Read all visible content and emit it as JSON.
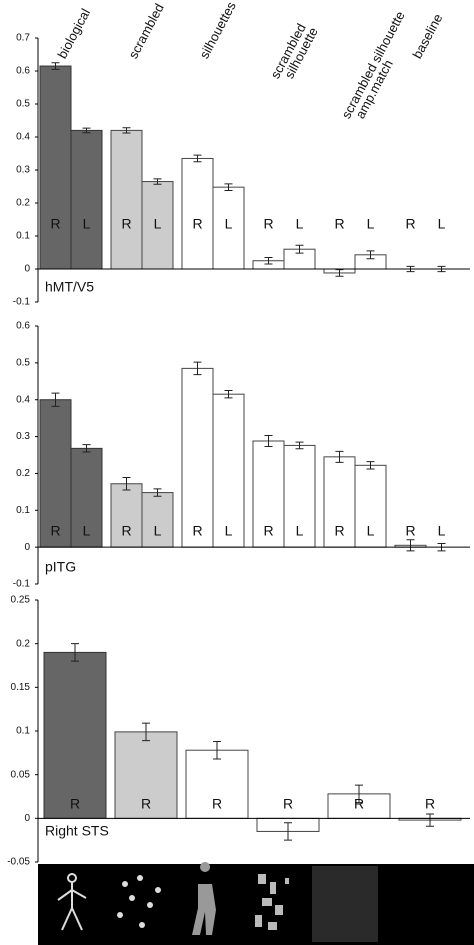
{
  "chart_data": [
    {
      "type": "bar",
      "label": "hMT/V5",
      "categories": [
        "biological",
        "scrambled",
        "silhouettes",
        [
          "scrambled",
          "silhouette"
        ],
        [
          "scrambled silhouette",
          "amp.match"
        ],
        "baseline"
      ],
      "colors": [
        "#666666",
        "#cccccc",
        "#ffffff",
        "#ffffff",
        "#ffffff",
        "#ffffff"
      ],
      "series": [
        {
          "name": "R",
          "values": [
            0.615,
            0.42,
            0.335,
            0.025,
            -0.012,
            0.0
          ],
          "errors": [
            0.01,
            0.008,
            0.01,
            0.01,
            0.01,
            0.008
          ]
        },
        {
          "name": "L",
          "values": [
            0.42,
            0.265,
            0.248,
            0.06,
            0.043,
            0.0
          ],
          "errors": [
            0.007,
            0.008,
            0.01,
            0.012,
            0.012,
            0.008
          ]
        }
      ],
      "ylim": [
        -0.1,
        0.7
      ],
      "yticks": [
        -0.1,
        0,
        0.1,
        0.2,
        0.3,
        0.4,
        0.5,
        0.6,
        0.7
      ]
    },
    {
      "type": "bar",
      "label": "pITG",
      "colors": [
        "#666666",
        "#cccccc",
        "#ffffff",
        "#ffffff",
        "#ffffff",
        "#ffffff"
      ],
      "series": [
        {
          "name": "R",
          "values": [
            0.4,
            0.172,
            0.485,
            0.288,
            0.245,
            0.005
          ],
          "errors": [
            0.018,
            0.017,
            0.017,
            0.015,
            0.015,
            0.015
          ]
        },
        {
          "name": "L",
          "values": [
            0.268,
            0.148,
            0.415,
            0.276,
            0.222,
            0.0
          ],
          "errors": [
            0.01,
            0.01,
            0.01,
            0.009,
            0.01,
            0.01
          ]
        }
      ],
      "ylim": [
        -0.1,
        0.6
      ],
      "yticks": [
        -0.1,
        0,
        0.1,
        0.2,
        0.3,
        0.4,
        0.5,
        0.6
      ]
    },
    {
      "type": "bar",
      "label": "Right STS",
      "colors": [
        "#666666",
        "#cccccc",
        "#ffffff",
        "#ffffff",
        "#ffffff",
        "#ffffff"
      ],
      "series": [
        {
          "name": "R",
          "values": [
            0.19,
            0.099,
            0.078,
            -0.015,
            0.028,
            -0.002
          ],
          "errors": [
            0.01,
            0.01,
            0.01,
            0.01,
            0.01,
            0.007
          ]
        }
      ],
      "ylim": [
        -0.05,
        0.25
      ],
      "yticks": [
        -0.05,
        0,
        0.05,
        0.1,
        0.15,
        0.2,
        0.25
      ]
    }
  ]
}
